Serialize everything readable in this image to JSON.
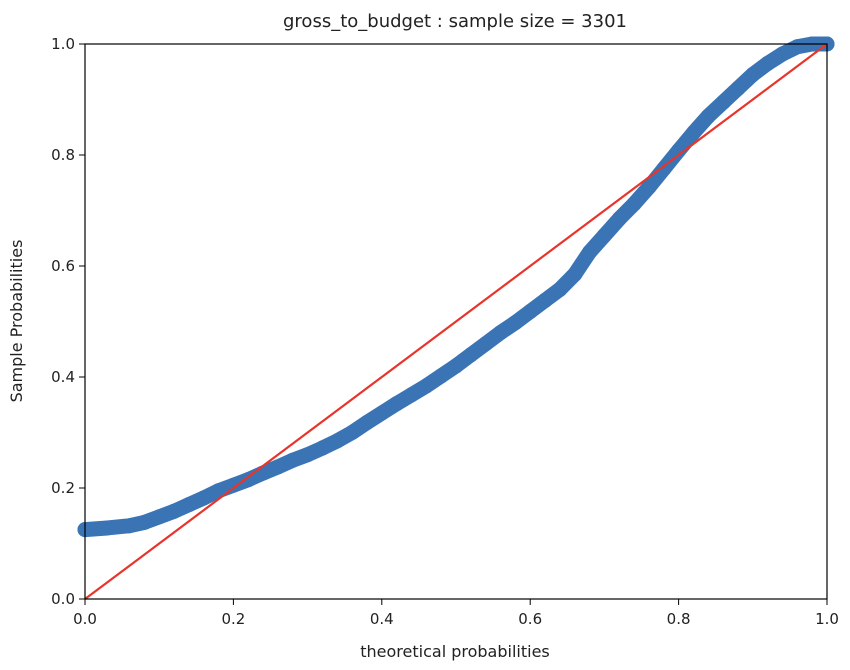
{
  "chart_data": {
    "type": "scatter",
    "title": "gross_to_budget : sample size = 3301",
    "xlabel": "theoretical probabilities",
    "ylabel": "Sample Probabilities",
    "xlim": [
      0.0,
      1.0
    ],
    "ylim": [
      0.0,
      1.0
    ],
    "xticks": [
      "0.0",
      "0.2",
      "0.4",
      "0.6",
      "0.8",
      "1.0"
    ],
    "yticks": [
      "0.0",
      "0.2",
      "0.4",
      "0.6",
      "0.8",
      "1.0"
    ],
    "grid": false,
    "series": [
      {
        "kind": "points",
        "color": "#3b74b5",
        "x": [
          0.0,
          0.03,
          0.06,
          0.08,
          0.1,
          0.12,
          0.14,
          0.16,
          0.18,
          0.2,
          0.22,
          0.24,
          0.26,
          0.28,
          0.3,
          0.32,
          0.34,
          0.36,
          0.38,
          0.4,
          0.42,
          0.44,
          0.46,
          0.48,
          0.5,
          0.52,
          0.54,
          0.56,
          0.58,
          0.6,
          0.62,
          0.64,
          0.66,
          0.68,
          0.7,
          0.72,
          0.74,
          0.76,
          0.78,
          0.8,
          0.82,
          0.84,
          0.86,
          0.88,
          0.9,
          0.92,
          0.94,
          0.96,
          0.98,
          1.0
        ],
        "y": [
          0.125,
          0.128,
          0.132,
          0.138,
          0.148,
          0.158,
          0.17,
          0.182,
          0.195,
          0.205,
          0.215,
          0.227,
          0.238,
          0.25,
          0.26,
          0.272,
          0.285,
          0.3,
          0.318,
          0.335,
          0.352,
          0.368,
          0.384,
          0.402,
          0.42,
          0.44,
          0.46,
          0.48,
          0.498,
          0.518,
          0.538,
          0.558,
          0.585,
          0.625,
          0.655,
          0.685,
          0.712,
          0.742,
          0.775,
          0.808,
          0.84,
          0.87,
          0.895,
          0.92,
          0.945,
          0.965,
          0.982,
          0.995,
          1.0,
          1.0
        ]
      },
      {
        "kind": "reference-line",
        "color": "#e8352b",
        "x": [
          0.0,
          1.0
        ],
        "y": [
          0.0,
          1.0
        ]
      }
    ]
  }
}
